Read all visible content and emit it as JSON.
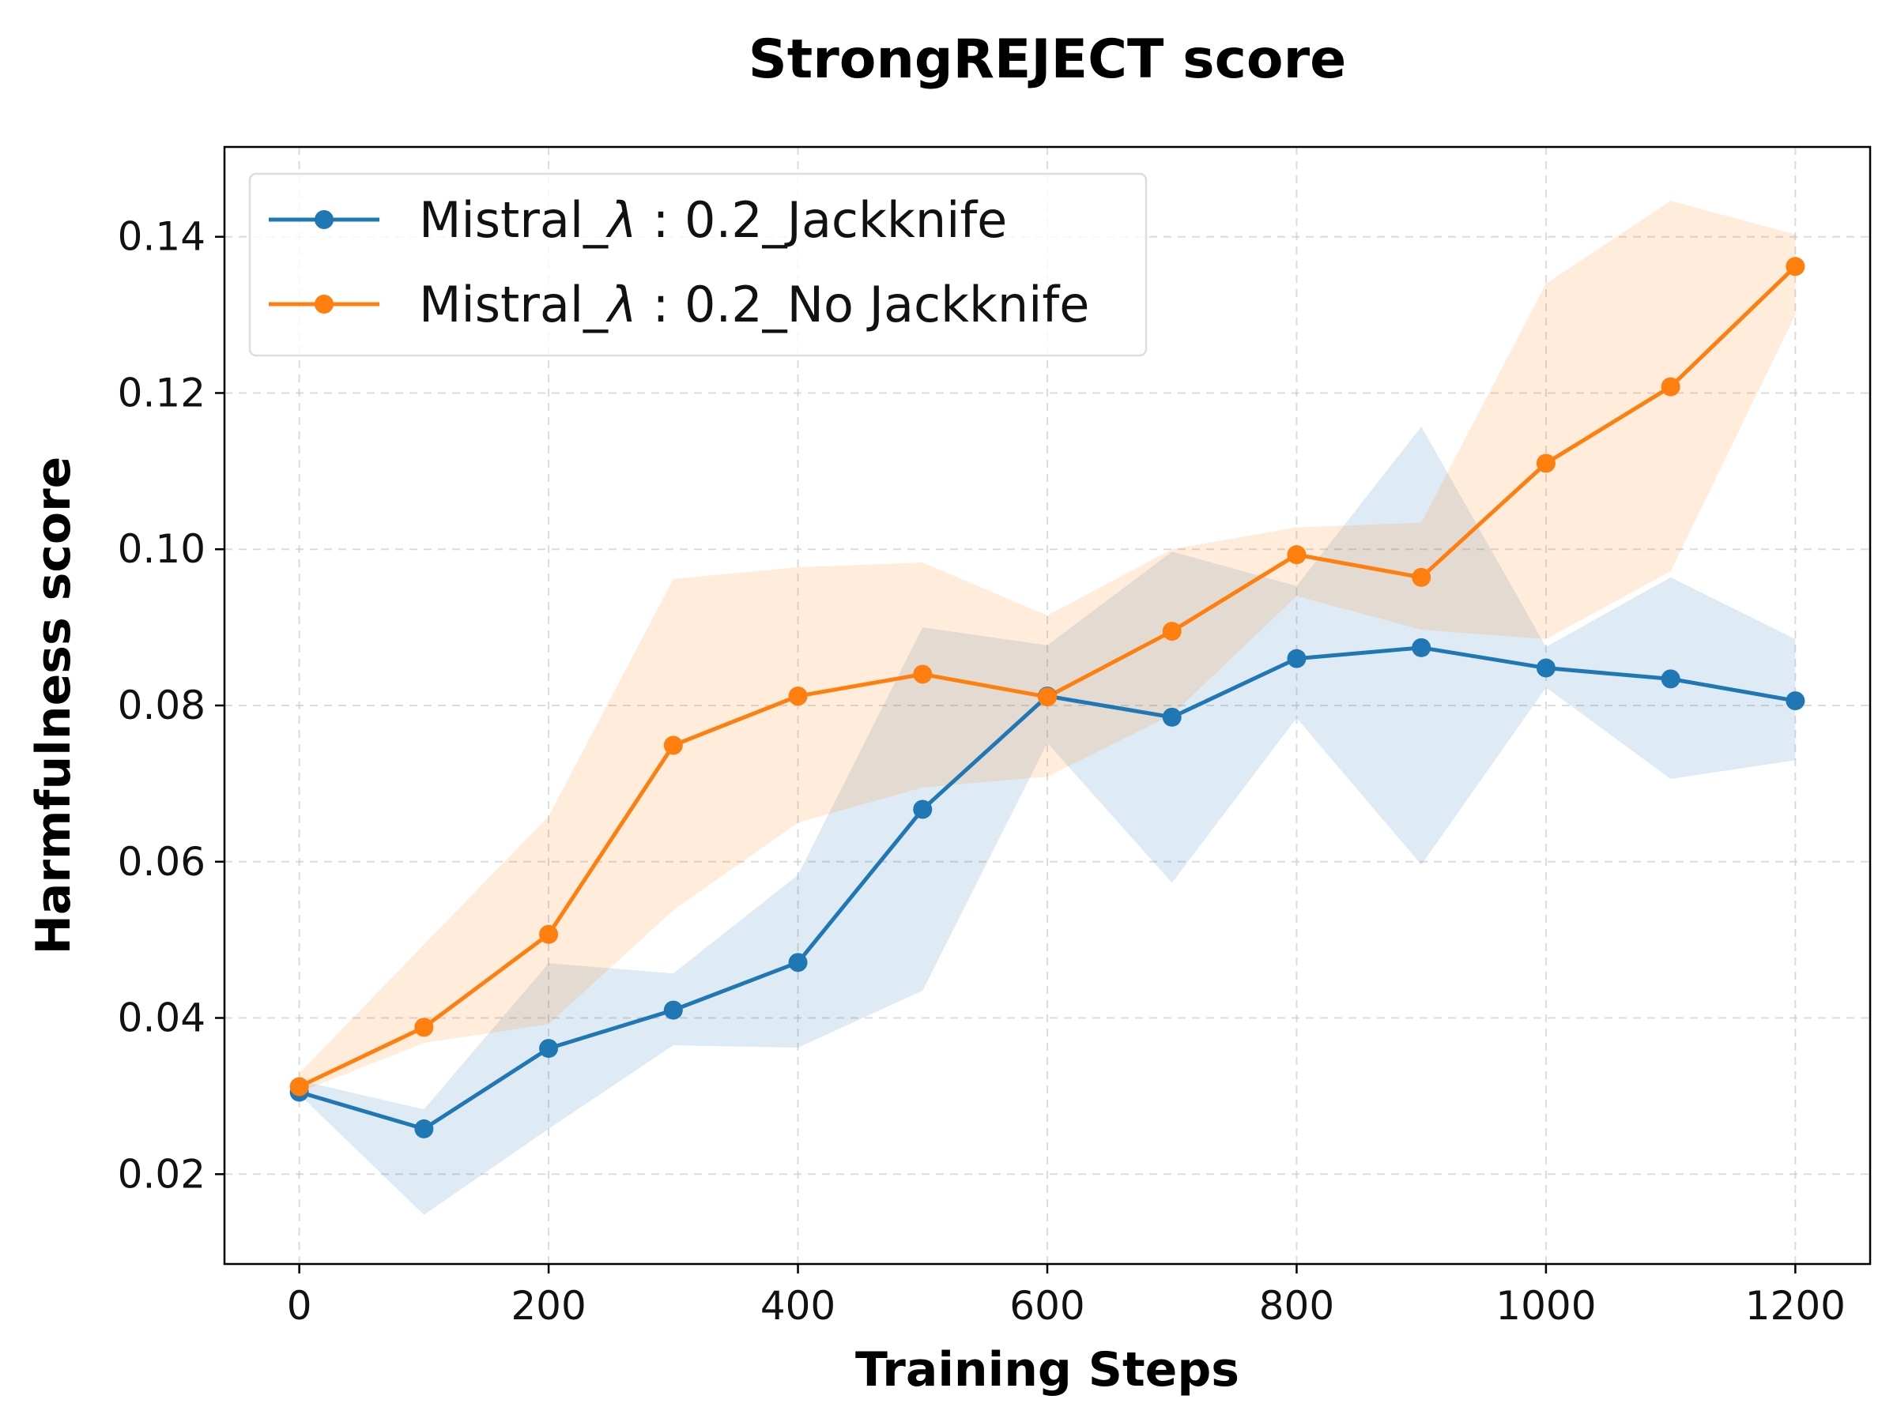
{
  "chart_data": {
    "type": "line",
    "title": "StrongREJECT score",
    "xlabel": "Training Steps",
    "ylabel": "Harmfulness score",
    "x": [
      0,
      100,
      200,
      300,
      400,
      500,
      600,
      700,
      800,
      900,
      1000,
      1100,
      1200
    ],
    "xlim": [
      -60,
      1260
    ],
    "ylim": [
      0.0085,
      0.1515
    ],
    "xticks": [
      0,
      200,
      400,
      600,
      800,
      1000,
      1200
    ],
    "xtick_labels": [
      "0",
      "200",
      "400",
      "600",
      "800",
      "1000",
      "1200"
    ],
    "yticks": [
      0.02,
      0.04,
      0.06,
      0.08,
      0.1,
      0.12,
      0.14
    ],
    "ytick_labels": [
      "0.02",
      "0.04",
      "0.06",
      "0.08",
      "0.10",
      "0.12",
      "0.14"
    ],
    "grid": true,
    "legend_position": "top-left",
    "series": [
      {
        "name": "Mistral_λ : 0.2_Jackknife",
        "legend_parts": [
          "Mistral_",
          "λ",
          " : 0.2_Jackknife"
        ],
        "color": "#1f77b4",
        "band_color": "#1f77b4",
        "values": [
          0.0305,
          0.0258,
          0.0361,
          0.041,
          0.0471,
          0.0667,
          0.0812,
          0.0785,
          0.086,
          0.0874,
          0.0848,
          0.0834,
          0.0806
        ],
        "lower": [
          0.0302,
          0.0148,
          0.0258,
          0.0365,
          0.0362,
          0.0435,
          0.0752,
          0.0573,
          0.0784,
          0.0596,
          0.0823,
          0.0706,
          0.073
        ],
        "upper": [
          0.032,
          0.0283,
          0.047,
          0.0457,
          0.0583,
          0.09,
          0.0877,
          0.0997,
          0.0953,
          0.1157,
          0.0875,
          0.0964,
          0.0885
        ]
      },
      {
        "name": "Mistral_λ : 0.2_No Jackknife",
        "legend_parts": [
          "Mistral_",
          "λ",
          " : 0.2_No Jackknife"
        ],
        "color": "#ff7f0e",
        "band_color": "#ff7f0e",
        "values": [
          0.0312,
          0.0388,
          0.0507,
          0.0749,
          0.0812,
          0.084,
          0.0811,
          0.0895,
          0.0993,
          0.0964,
          0.111,
          0.1208,
          0.1362
        ],
        "lower": [
          0.0305,
          0.0368,
          0.0392,
          0.0538,
          0.065,
          0.0695,
          0.0709,
          0.0788,
          0.094,
          0.0897,
          0.0885,
          0.0972,
          0.13
        ],
        "upper": [
          0.0329,
          0.0494,
          0.0658,
          0.0962,
          0.0977,
          0.0983,
          0.0915,
          0.1,
          0.1028,
          0.1034,
          0.134,
          0.1446,
          0.1403
        ]
      }
    ]
  }
}
